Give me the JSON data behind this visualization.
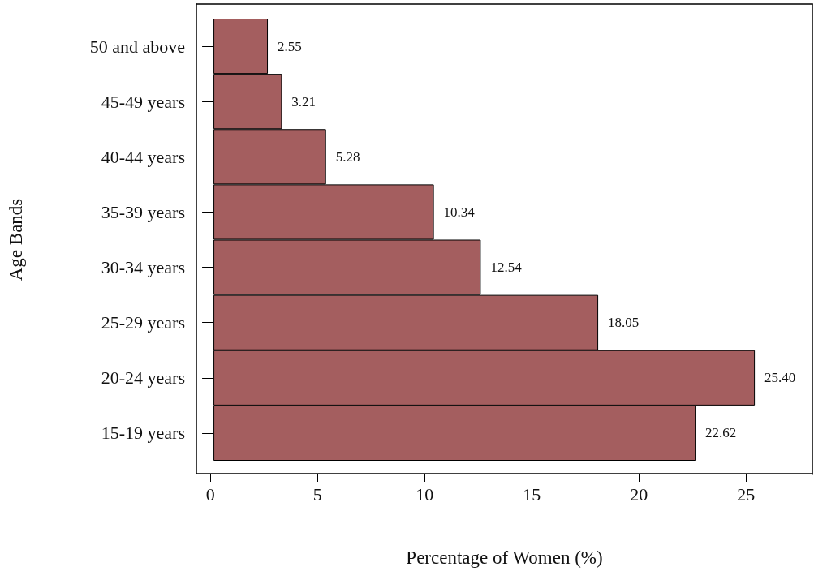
{
  "chart_data": {
    "type": "bar",
    "orientation": "horizontal",
    "xlabel": "Percentage of Women (%)",
    "ylabel": "Age Bands",
    "categories": [
      "50 and above",
      "45-49 years",
      "40-44 years",
      "35-39 years",
      "30-34 years",
      "25-29 years",
      "20-24 years",
      "15-19 years"
    ],
    "values": [
      2.55,
      3.21,
      5.28,
      10.34,
      12.54,
      18.05,
      25.4,
      22.62
    ],
    "value_labels": [
      "2.55",
      "3.21",
      "5.28",
      "10.34",
      "12.54",
      "18.05",
      "25.40",
      "22.62"
    ],
    "color": "#a45e5f",
    "xlim": [
      -0.65,
      28.1
    ],
    "xticks": [
      0,
      5,
      10,
      15,
      20,
      25
    ],
    "grid": false
  }
}
